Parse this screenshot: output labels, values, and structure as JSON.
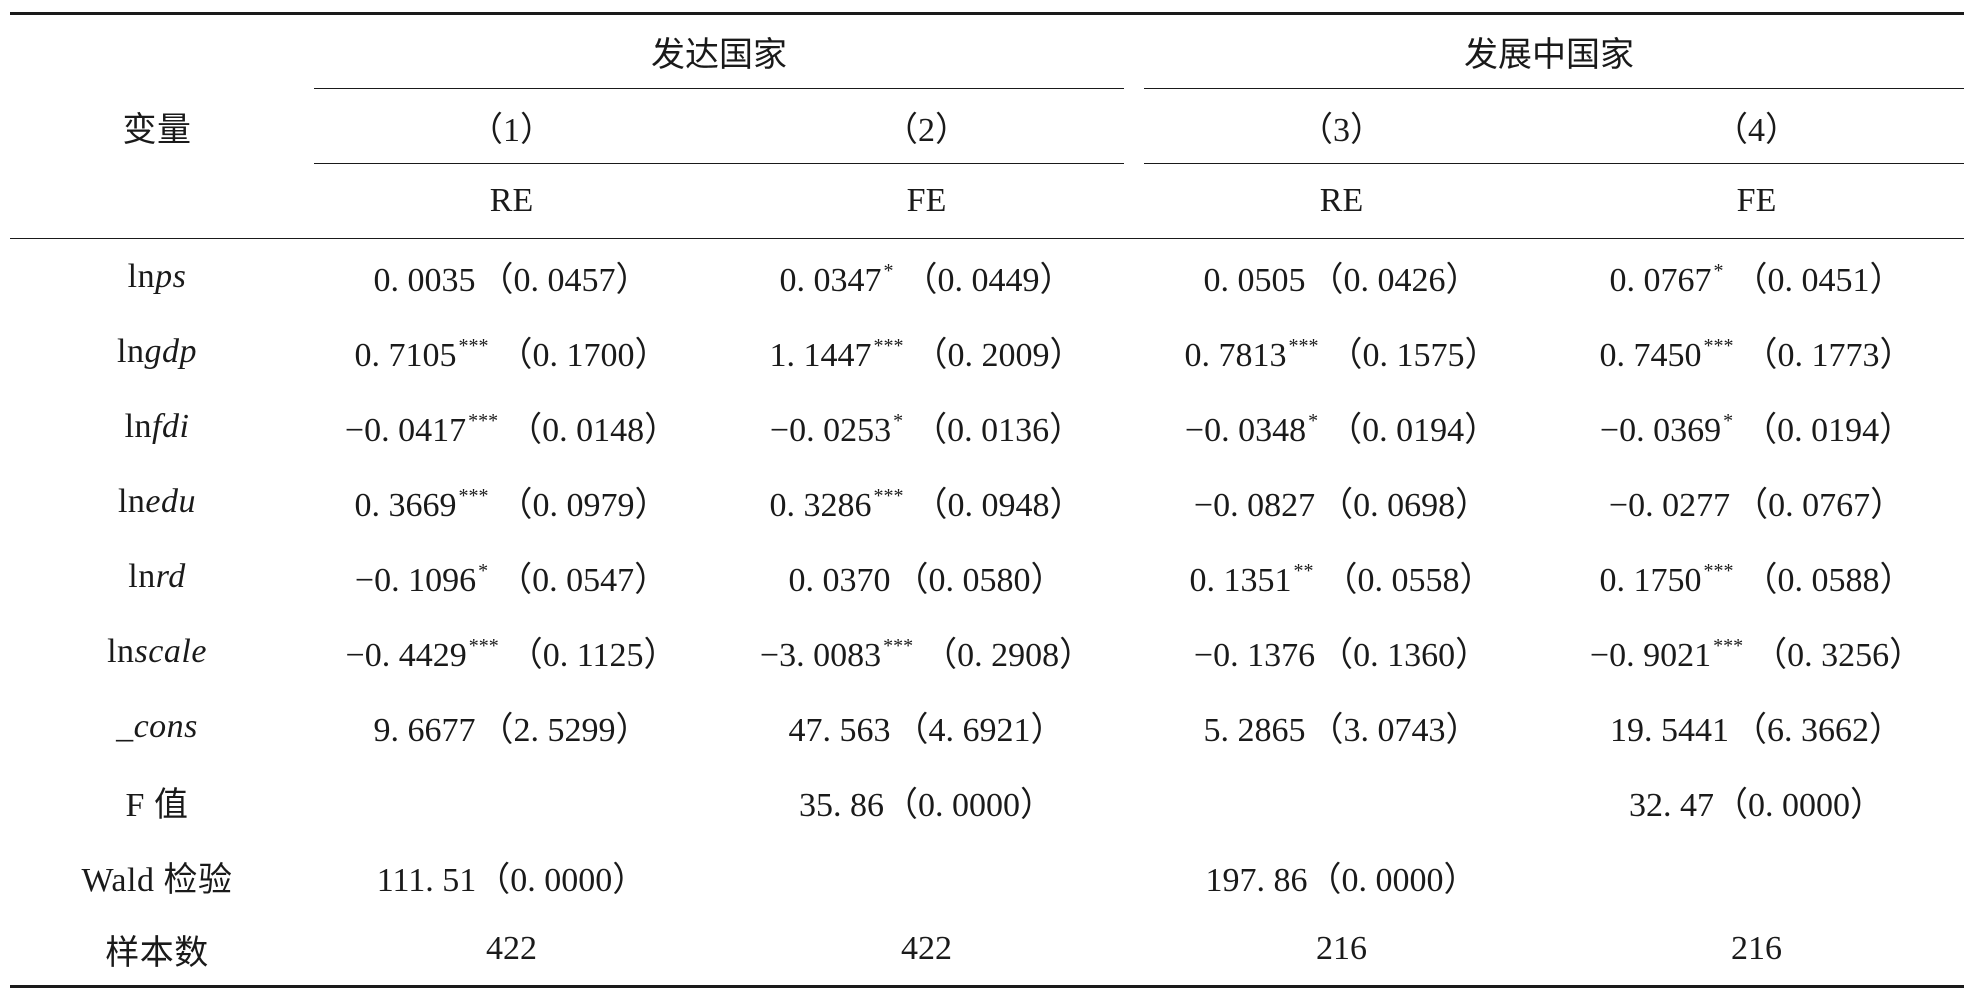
{
  "header": {
    "var_label": "变量",
    "group_developed": "发达国家",
    "group_developing": "发展中国家",
    "columns": [
      {
        "num": "（1）",
        "model": "RE"
      },
      {
        "num": "（2）",
        "model": "FE"
      },
      {
        "num": "（3）",
        "model": "RE"
      },
      {
        "num": "（4）",
        "model": "FE"
      }
    ]
  },
  "rows": [
    {
      "prefix": "ln",
      "var": "ps",
      "cells": [
        {
          "coef": "0. 0035",
          "stars": "",
          "se": "（0. 0457）"
        },
        {
          "coef": "0. 0347",
          "stars": "*",
          "se": "（0. 0449）"
        },
        {
          "coef": "0. 0505",
          "stars": "",
          "se": "（0. 0426）"
        },
        {
          "coef": "0. 0767",
          "stars": "*",
          "se": "（0. 0451）"
        }
      ]
    },
    {
      "prefix": "ln",
      "var": "gdp",
      "cells": [
        {
          "coef": "0. 7105",
          "stars": "***",
          "se": "（0. 1700）"
        },
        {
          "coef": "1. 1447",
          "stars": "***",
          "se": "（0. 2009）"
        },
        {
          "coef": "0. 7813",
          "stars": "***",
          "se": "（0. 1575）"
        },
        {
          "coef": "0. 7450",
          "stars": "***",
          "se": "（0. 1773）"
        }
      ]
    },
    {
      "prefix": "ln",
      "var": "fdi",
      "cells": [
        {
          "coef": "−0. 0417",
          "stars": "***",
          "se": "（0. 0148）"
        },
        {
          "coef": "−0. 0253",
          "stars": "*",
          "se": "（0. 0136）"
        },
        {
          "coef": "−0. 0348",
          "stars": "*",
          "se": "（0. 0194）"
        },
        {
          "coef": "−0. 0369",
          "stars": "*",
          "se": "（0. 0194）"
        }
      ]
    },
    {
      "prefix": "ln",
      "var": "edu",
      "cells": [
        {
          "coef": "0. 3669",
          "stars": "***",
          "se": "（0. 0979）"
        },
        {
          "coef": "0. 3286",
          "stars": "***",
          "se": "（0. 0948）"
        },
        {
          "coef": "−0. 0827",
          "stars": "",
          "se": "（0. 0698）"
        },
        {
          "coef": "−0. 0277",
          "stars": "",
          "se": "（0. 0767）"
        }
      ]
    },
    {
      "prefix": "ln",
      "var": "rd",
      "cells": [
        {
          "coef": "−0. 1096",
          "stars": "*",
          "se": "（0. 0547）"
        },
        {
          "coef": "0. 0370",
          "stars": "",
          "se": "（0. 0580）"
        },
        {
          "coef": "0. 1351",
          "stars": "**",
          "se": "（0. 0558）"
        },
        {
          "coef": "0. 1750",
          "stars": "***",
          "se": "（0. 0588）"
        }
      ]
    },
    {
      "prefix": "ln",
      "var": "scale",
      "cells": [
        {
          "coef": "−0. 4429",
          "stars": "***",
          "se": "（0. 1125）"
        },
        {
          "coef": "−3. 0083",
          "stars": "***",
          "se": "（0. 2908）"
        },
        {
          "coef": "−0. 1376",
          "stars": "",
          "se": "（0. 1360）"
        },
        {
          "coef": "−0. 9021",
          "stars": "***",
          "se": "（0. 3256）"
        }
      ]
    },
    {
      "prefix": "",
      "var": "_cons",
      "cells": [
        {
          "coef": "9. 6677",
          "stars": "",
          "se": "（2. 5299）"
        },
        {
          "coef": "47. 563",
          "stars": "",
          "se": "（4. 6921）"
        },
        {
          "coef": "5. 2865",
          "stars": "",
          "se": "（3. 0743）"
        },
        {
          "coef": "19. 5441",
          "stars": "",
          "se": "（6. 3662）"
        }
      ]
    }
  ],
  "stats": [
    {
      "label": "F 值",
      "cells": [
        "",
        "35. 86（0. 0000）",
        "",
        "32. 47（0. 0000）"
      ]
    },
    {
      "label": "Wald 检验",
      "cells": [
        "111. 51（0. 0000）",
        "",
        "197. 86（0. 0000）",
        ""
      ]
    },
    {
      "label": "样本数",
      "cells": [
        "422",
        "422",
        "216",
        "216"
      ]
    }
  ]
}
